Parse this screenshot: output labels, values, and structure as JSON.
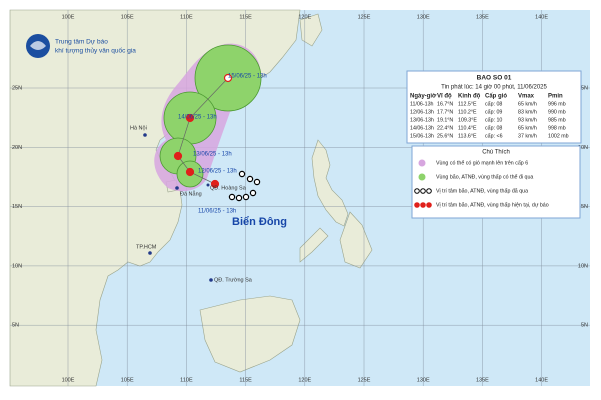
{
  "header": {
    "line1": "Trung tâm Dự báo",
    "line2": "khí tượng thủy văn quốc gia"
  },
  "grid": {
    "lon_labels": [
      "100E",
      "105E",
      "110E",
      "115E",
      "120E",
      "125E",
      "130E",
      "135E",
      "140E"
    ],
    "lat_labels": [
      "25N",
      "20N",
      "15N",
      "10N",
      "5N"
    ]
  },
  "places": {
    "hanoi": "Hà Nội",
    "danang": "Đà Nẵng",
    "hcm": "TP.HCM",
    "truongsa": "QĐ. Trường Sa",
    "hoangsa": "QĐ. Hoàng Sa",
    "sea": "Biển Đông"
  },
  "track_labels": [
    "11/06/25 - 13h",
    "12/06/25 - 13h",
    "13/06/25 - 13h",
    "14/06/25 - 13h",
    "15/06/25 - 13h"
  ],
  "info": {
    "title": "BAO SO 01",
    "issued": "Tin phát lúc: 14 giờ 00 phút, 11/06/2025",
    "columns": [
      "Ngày-giờ",
      "Vĩ độ",
      "Kinh độ",
      "Cấp gió",
      "Vmax",
      "Pmin"
    ],
    "rows": [
      [
        "11/06-13h",
        "16.7°N",
        "112.5°E",
        "cấp: 08",
        "65 km/h",
        "996 mb"
      ],
      [
        "12/06-13h",
        "17.7°N",
        "110.2°E",
        "cấp: 09",
        "83 km/h",
        "990 mb"
      ],
      [
        "13/06-13h",
        "19.1°N",
        "109.3°E",
        "cấp: 10",
        "93 km/h",
        "985 mb"
      ],
      [
        "14/06-13h",
        "22.4°N",
        "110.4°E",
        "cấp: 08",
        "65 km/h",
        "998 mb"
      ],
      [
        "15/06-13h",
        "25.6°N",
        "113.6°E",
        "cấp: <6",
        "37 km/h",
        "1002 mb"
      ]
    ]
  },
  "legend": {
    "title": "Chú Thích",
    "items": [
      "Vùng có thể có gió mạnh lên trên cấp 6",
      "Vùng bão, ATNĐ, vùng thấp có thể đi qua",
      "Vị trí tâm bão, ATNĐ, vùng thấp đã qua",
      "Vị trí tâm bão, ATNĐ, vùng thấp hiện tại, dự báo"
    ]
  }
}
